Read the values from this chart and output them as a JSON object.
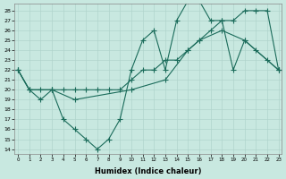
{
  "bg_color": "#c8e8e0",
  "grid_color": "#b0d4cc",
  "line_color": "#1a6b5a",
  "xlabel": "Humidex (Indice chaleur)",
  "xlim": [
    -0.3,
    23.3
  ],
  "ylim": [
    13.5,
    28.7
  ],
  "yticks": [
    14,
    15,
    16,
    17,
    18,
    19,
    20,
    21,
    22,
    23,
    24,
    25,
    26,
    27,
    28
  ],
  "xticks": [
    0,
    1,
    2,
    3,
    4,
    5,
    6,
    7,
    8,
    9,
    10,
    11,
    12,
    13,
    14,
    15,
    16,
    17,
    18,
    19,
    20,
    21,
    22,
    23
  ],
  "line_zigzag": {
    "x": [
      0,
      1,
      2,
      3,
      4,
      5,
      6,
      7,
      8,
      9,
      10,
      11,
      12,
      13,
      14,
      15,
      16,
      17,
      18,
      19,
      20,
      21,
      22,
      23
    ],
    "y": [
      22,
      20,
      19,
      20,
      17,
      16,
      15,
      14,
      15,
      17,
      22,
      25,
      26,
      22,
      27,
      29,
      29,
      27,
      27,
      22,
      25,
      24,
      23,
      22
    ]
  },
  "line_rising": {
    "x": [
      0,
      1,
      3,
      5,
      10,
      13,
      15,
      16,
      18,
      20,
      23
    ],
    "y": [
      22,
      20,
      20,
      19,
      20,
      21,
      24,
      25,
      26,
      25,
      22
    ]
  },
  "line_slow": {
    "x": [
      0,
      1,
      2,
      3,
      4,
      5,
      6,
      7,
      8,
      9,
      10,
      11,
      12,
      13,
      14,
      15,
      16,
      17,
      18,
      19,
      20,
      21,
      22,
      23
    ],
    "y": [
      22,
      20,
      20,
      20,
      20,
      20,
      20,
      20,
      20,
      20,
      21,
      22,
      22,
      23,
      23,
      24,
      25,
      26,
      27,
      27,
      28,
      28,
      28,
      22
    ]
  }
}
